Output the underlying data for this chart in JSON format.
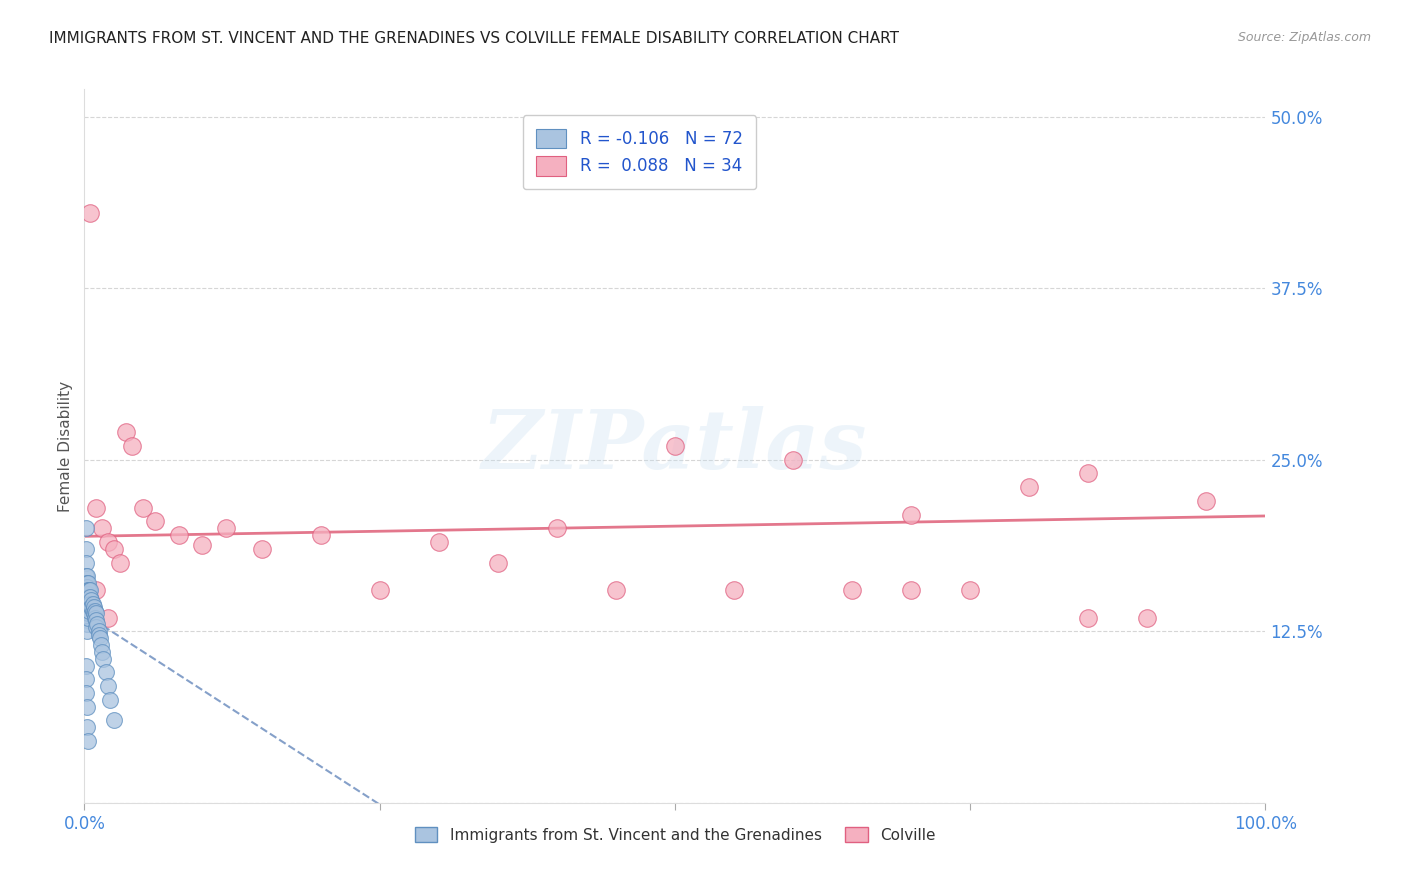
{
  "title": "IMMIGRANTS FROM ST. VINCENT AND THE GRENADINES VS COLVILLE FEMALE DISABILITY CORRELATION CHART",
  "source": "Source: ZipAtlas.com",
  "ylabel": "Female Disability",
  "r_blue": -0.106,
  "n_blue": 72,
  "r_pink": 0.088,
  "n_pink": 34,
  "blue_color": "#aac4e0",
  "pink_color": "#f5b0c0",
  "blue_edge_color": "#6090c0",
  "pink_edge_color": "#e06080",
  "blue_line_color": "#7090c0",
  "pink_line_color": "#e06880",
  "title_color": "#222222",
  "source_color": "#999999",
  "axis_tick_color": "#4488dd",
  "ylabel_color": "#555555",
  "grid_color": "#cccccc",
  "legend_label_blue": "Immigrants from St. Vincent and the Grenadines",
  "legend_label_pink": "Colville",
  "watermark": "ZIPatlas",
  "bg_color": "#ffffff",
  "blue_scatter_x": [
    0.001,
    0.001,
    0.001,
    0.001,
    0.001,
    0.001,
    0.001,
    0.001,
    0.001,
    0.001,
    0.001,
    0.001,
    0.002,
    0.002,
    0.002,
    0.002,
    0.002,
    0.002,
    0.002,
    0.002,
    0.002,
    0.002,
    0.002,
    0.002,
    0.002,
    0.002,
    0.002,
    0.003,
    0.003,
    0.003,
    0.003,
    0.003,
    0.003,
    0.003,
    0.003,
    0.003,
    0.004,
    0.004,
    0.004,
    0.004,
    0.004,
    0.005,
    0.005,
    0.005,
    0.006,
    0.006,
    0.007,
    0.007,
    0.008,
    0.008,
    0.009,
    0.009,
    0.01,
    0.01,
    0.01,
    0.011,
    0.012,
    0.012,
    0.013,
    0.014,
    0.015,
    0.016,
    0.018,
    0.02,
    0.022,
    0.025,
    0.001,
    0.001,
    0.001,
    0.002,
    0.002,
    0.003
  ],
  "blue_scatter_y": [
    0.2,
    0.185,
    0.175,
    0.165,
    0.16,
    0.155,
    0.15,
    0.148,
    0.145,
    0.143,
    0.14,
    0.135,
    0.165,
    0.16,
    0.157,
    0.155,
    0.153,
    0.15,
    0.148,
    0.145,
    0.142,
    0.14,
    0.138,
    0.135,
    0.133,
    0.13,
    0.125,
    0.16,
    0.155,
    0.152,
    0.15,
    0.148,
    0.145,
    0.142,
    0.138,
    0.135,
    0.155,
    0.15,
    0.148,
    0.145,
    0.14,
    0.155,
    0.15,
    0.145,
    0.148,
    0.143,
    0.145,
    0.14,
    0.143,
    0.138,
    0.14,
    0.135,
    0.138,
    0.133,
    0.128,
    0.13,
    0.125,
    0.122,
    0.12,
    0.115,
    0.11,
    0.105,
    0.095,
    0.085,
    0.075,
    0.06,
    0.1,
    0.09,
    0.08,
    0.07,
    0.055,
    0.045
  ],
  "pink_scatter_x": [
    0.005,
    0.01,
    0.015,
    0.02,
    0.025,
    0.03,
    0.035,
    0.04,
    0.05,
    0.06,
    0.08,
    0.1,
    0.12,
    0.15,
    0.2,
    0.25,
    0.3,
    0.35,
    0.4,
    0.45,
    0.5,
    0.55,
    0.6,
    0.65,
    0.7,
    0.75,
    0.8,
    0.85,
    0.9,
    0.95,
    0.01,
    0.02,
    0.7,
    0.85
  ],
  "pink_scatter_y": [
    0.43,
    0.215,
    0.2,
    0.19,
    0.185,
    0.175,
    0.27,
    0.26,
    0.215,
    0.205,
    0.195,
    0.188,
    0.2,
    0.185,
    0.195,
    0.155,
    0.19,
    0.175,
    0.2,
    0.155,
    0.26,
    0.155,
    0.25,
    0.155,
    0.21,
    0.155,
    0.23,
    0.24,
    0.135,
    0.22,
    0.155,
    0.135,
    0.155,
    0.135
  ],
  "xlim": [
    0.0,
    1.0
  ],
  "ylim": [
    0.0,
    0.52
  ],
  "yticks": [
    0.0,
    0.125,
    0.25,
    0.375,
    0.5
  ],
  "ytick_labels": [
    "",
    "12.5%",
    "25.0%",
    "37.5%",
    "50.0%"
  ],
  "xticks": [
    0.0,
    0.25,
    0.5,
    0.75,
    1.0
  ],
  "xtick_labels": [
    "0.0%",
    "",
    "",
    "",
    "100.0%"
  ]
}
